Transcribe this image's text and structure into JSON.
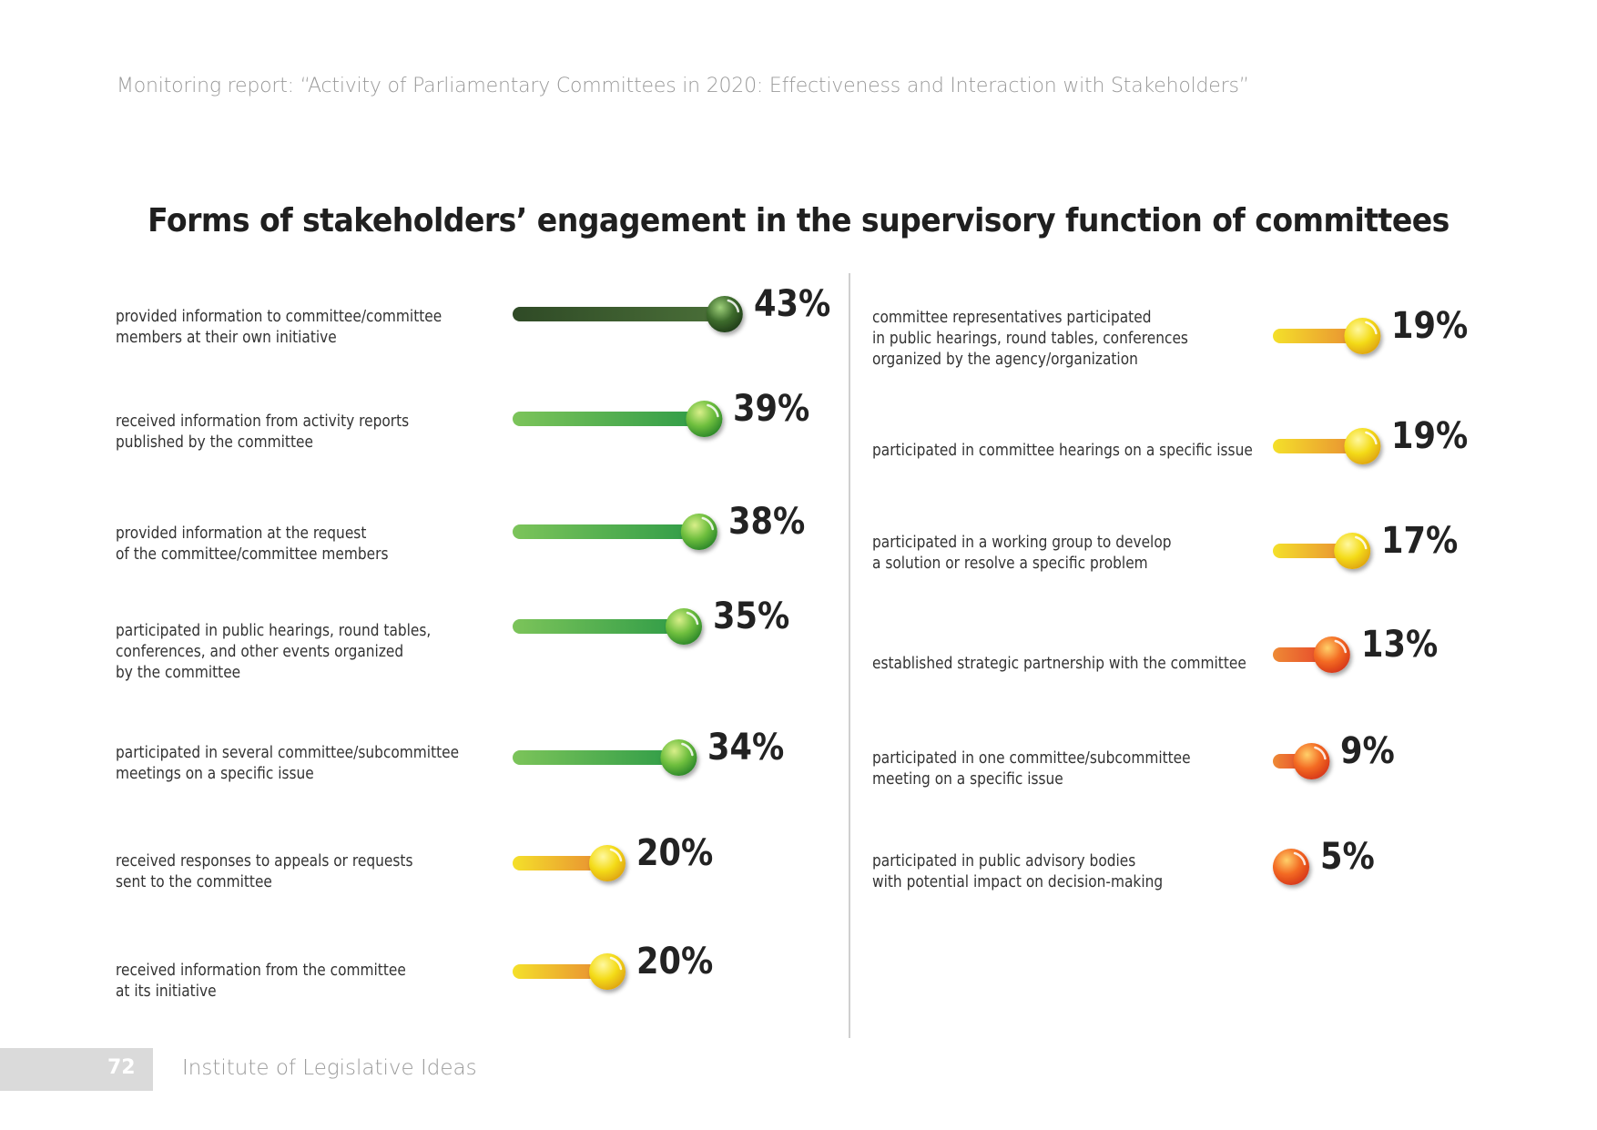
{
  "header": {
    "report_title": "Monitoring report: “Activity of Parliamentary Committees in 2020: Effectiveness and Interaction with Stakeholders”"
  },
  "footer": {
    "page_number": "72",
    "organization": "Institute of Legislative Ideas"
  },
  "chart_data": {
    "type": "bar",
    "title": "Forms of stakeholders’ engagement in the supervisory function of committees",
    "unit": "%",
    "colors": {
      "dark_green": "#3d5e2f",
      "green": "#3aa34a",
      "yellow": "#f3d61c",
      "orange": "#ee6a2a"
    },
    "columns": [
      {
        "items": [
          {
            "label": "provided information to committee/committee\nmembers at their own initiative",
            "value": 43,
            "display": "43%",
            "color": "dark_green"
          },
          {
            "label": "received information from activity reports\npublished by the committee",
            "value": 39,
            "display": "39%",
            "color": "green"
          },
          {
            "label": "provided information at the request\nof the committee/committee members",
            "value": 38,
            "display": "38%",
            "color": "green"
          },
          {
            "label": "participated in public hearings, round tables,\nconferences, and other events organized\nby the committee",
            "value": 35,
            "display": "35%",
            "color": "green"
          },
          {
            "label": "participated in several committee/subcommittee\nmeetings on a specific issue",
            "value": 34,
            "display": "34%",
            "color": "green"
          },
          {
            "label": "received responses to appeals or requests\nsent to the committee",
            "value": 20,
            "display": "20%",
            "color": "yellow"
          },
          {
            "label": "received information from the committee\nat its initiative",
            "value": 20,
            "display": "20%",
            "color": "yellow"
          }
        ]
      },
      {
        "items": [
          {
            "label": "committee representatives participated\nin public hearings, round tables, conferences\norganized by the agency/organization",
            "value": 19,
            "display": "19%",
            "color": "yellow"
          },
          {
            "label": "participated in committee hearings on a specific issue",
            "value": 19,
            "display": "19%",
            "color": "yellow"
          },
          {
            "label": "participated in a working group to develop\na solution or resolve a specific problem",
            "value": 17,
            "display": "17%",
            "color": "yellow"
          },
          {
            "label": "established strategic partnership with the committee",
            "value": 13,
            "display": "13%",
            "color": "orange"
          },
          {
            "label": "participated in one committee/subcommittee\nmeeting on a specific issue",
            "value": 9,
            "display": "9%",
            "color": "orange"
          },
          {
            "label": "participated in public advisory bodies\nwith potential impact on decision-making",
            "value": 5,
            "display": "5%",
            "color": "orange"
          }
        ]
      }
    ]
  }
}
